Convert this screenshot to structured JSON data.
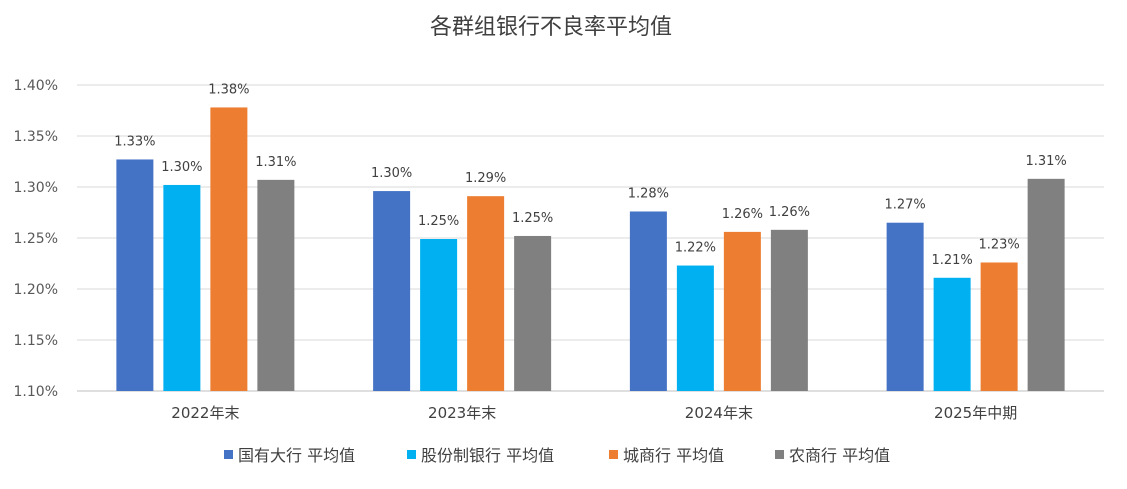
{
  "chart_data": {
    "type": "bar",
    "title": "各群组银行不良率平均值",
    "xlabel": "",
    "ylabel": "",
    "ylim": [
      1.1,
      1.4
    ],
    "yticks": [
      1.1,
      1.15,
      1.2,
      1.25,
      1.3,
      1.35,
      1.4
    ],
    "ytick_labels": [
      "1.10%",
      "1.15%",
      "1.20%",
      "1.25%",
      "1.30%",
      "1.35%",
      "1.40%"
    ],
    "grid": true,
    "legend_position": "bottom",
    "categories": [
      "2022年末",
      "2023年末",
      "2024年末",
      "2025年中期"
    ],
    "series": [
      {
        "name": "国有大行 平均值",
        "color": "#4472C4",
        "values": [
          1.327,
          1.296,
          1.276,
          1.265
        ],
        "labels": [
          "1.33%",
          "1.30%",
          "1.28%",
          "1.27%"
        ]
      },
      {
        "name": "股份制银行 平均值",
        "color": "#00B0F0",
        "values": [
          1.302,
          1.249,
          1.223,
          1.211
        ],
        "labels": [
          "1.30%",
          "1.25%",
          "1.22%",
          "1.21%"
        ]
      },
      {
        "name": "城商行 平均值",
        "color": "#ED7D31",
        "values": [
          1.378,
          1.291,
          1.256,
          1.226
        ],
        "labels": [
          "1.38%",
          "1.29%",
          "1.26%",
          "1.23%"
        ]
      },
      {
        "name": "农商行 平均值",
        "color": "#808080",
        "values": [
          1.307,
          1.252,
          1.258,
          1.308
        ],
        "labels": [
          "1.31%",
          "1.25%",
          "1.26%",
          "1.31%"
        ]
      }
    ]
  }
}
